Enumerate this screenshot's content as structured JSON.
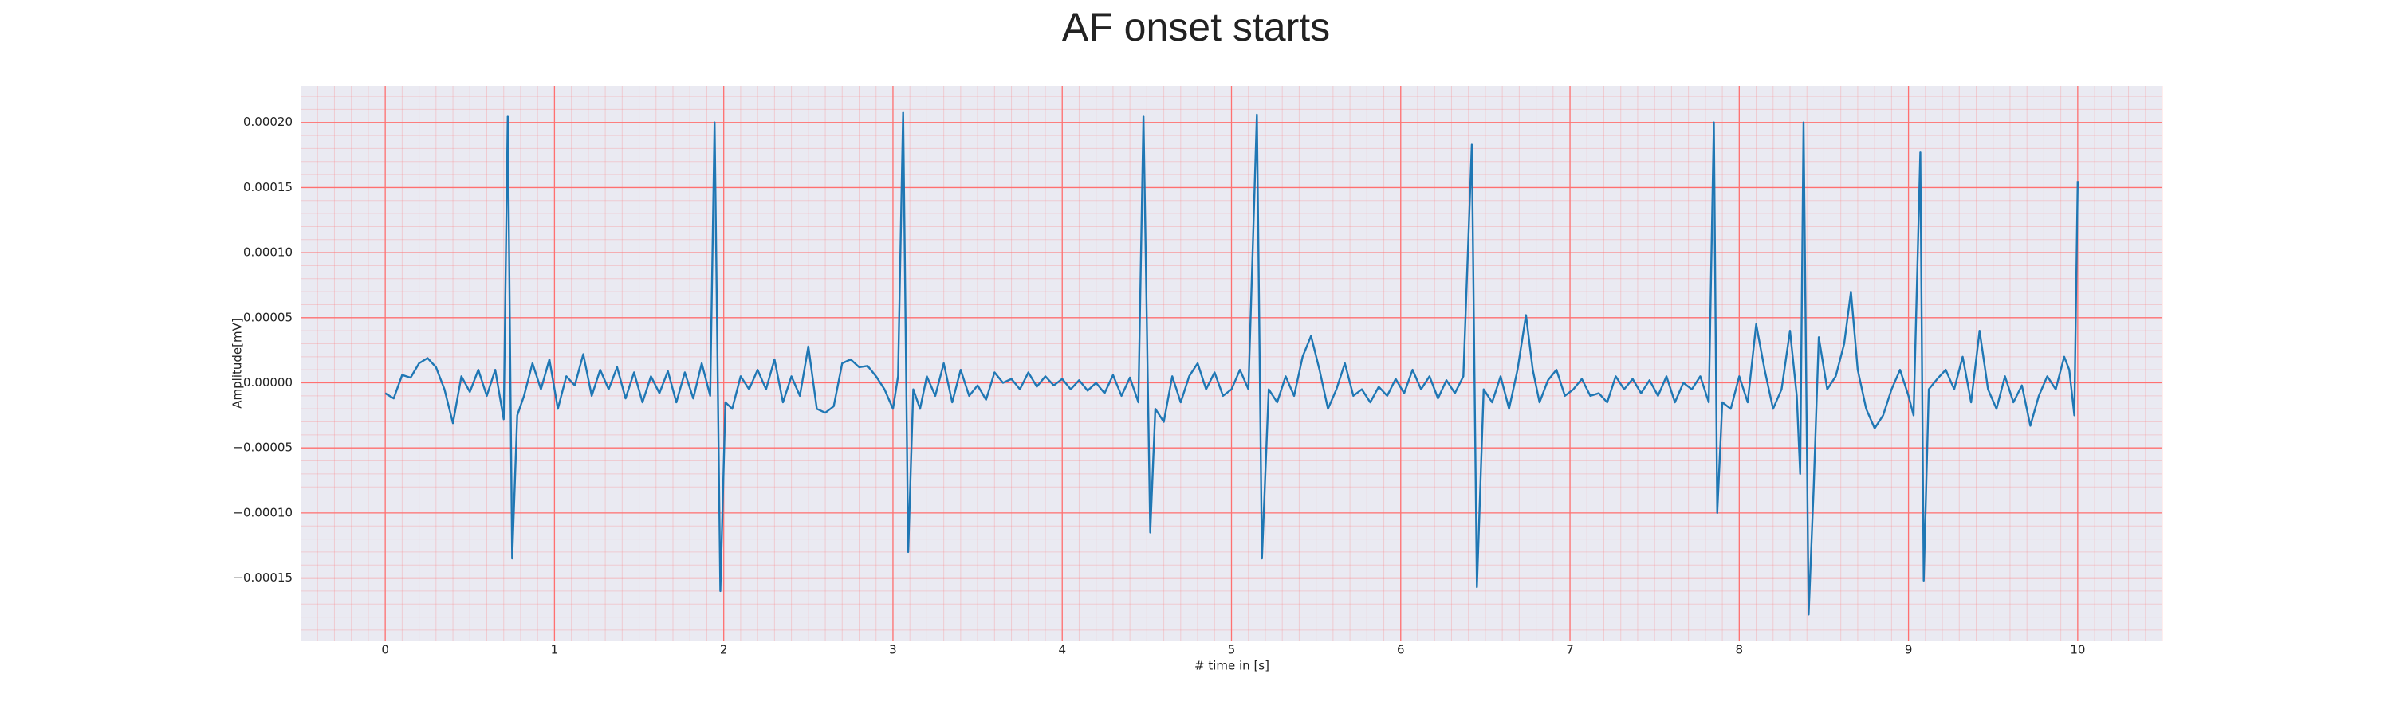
{
  "chart_data": {
    "type": "line",
    "title": "AF onset starts",
    "xlabel": "# time in [s]",
    "ylabel": "Amplitude[mV]",
    "xlim": [
      -0.5,
      10.5
    ],
    "ylim": [
      -0.000198,
      0.000228
    ],
    "xticks": [
      0,
      1,
      2,
      3,
      4,
      5,
      6,
      7,
      8,
      9,
      10
    ],
    "yticks": [
      {
        "value": -0.00015,
        "label": "−0.00015"
      },
      {
        "value": -0.0001,
        "label": "−0.00010"
      },
      {
        "value": -5e-05,
        "label": "−0.00005"
      },
      {
        "value": 0,
        "label": "0.00000"
      },
      {
        "value": 5e-05,
        "label": "0.00005"
      },
      {
        "value": 0.0001,
        "label": "0.00010"
      },
      {
        "value": 0.00015,
        "label": "0.00015"
      },
      {
        "value": 0.0002,
        "label": "0.00020"
      }
    ],
    "grid": true,
    "grid_color": "#ff7070",
    "background": "#eaeaf2",
    "series": [
      {
        "color": "#1f77b4",
        "x": [
          0,
          0.05,
          0.1,
          0.15,
          0.2,
          0.25,
          0.3,
          0.35,
          0.4,
          0.45,
          0.5,
          0.55,
          0.6,
          0.65,
          0.7,
          0.724,
          0.75,
          0.78,
          0.82,
          0.87,
          0.92,
          0.97,
          1.02,
          1.07,
          1.12,
          1.17,
          1.22,
          1.27,
          1.32,
          1.37,
          1.42,
          1.47,
          1.52,
          1.57,
          1.62,
          1.67,
          1.72,
          1.77,
          1.82,
          1.87,
          1.92,
          1.946,
          1.98,
          2.01,
          2.05,
          2.1,
          2.15,
          2.2,
          2.25,
          2.3,
          2.35,
          2.4,
          2.45,
          2.5,
          2.55,
          2.6,
          2.65,
          2.7,
          2.75,
          2.8,
          2.85,
          2.9,
          2.95,
          3.0,
          3.03,
          3.06,
          3.09,
          3.12,
          3.16,
          3.2,
          3.25,
          3.3,
          3.35,
          3.4,
          3.45,
          3.5,
          3.55,
          3.6,
          3.65,
          3.7,
          3.75,
          3.8,
          3.85,
          3.9,
          3.95,
          4.0,
          4.05,
          4.1,
          4.15,
          4.2,
          4.25,
          4.3,
          4.35,
          4.4,
          4.45,
          4.48,
          4.52,
          4.55,
          4.6,
          4.65,
          4.7,
          4.75,
          4.8,
          4.85,
          4.9,
          4.95,
          5.0,
          5.05,
          5.1,
          5.15,
          5.18,
          5.22,
          5.27,
          5.32,
          5.37,
          5.42,
          5.47,
          5.52,
          5.57,
          5.62,
          5.67,
          5.72,
          5.77,
          5.82,
          5.87,
          5.92,
          5.97,
          6.02,
          6.07,
          6.12,
          6.17,
          6.22,
          6.27,
          6.32,
          6.37,
          6.42,
          6.45,
          6.49,
          6.54,
          6.59,
          6.64,
          6.69,
          6.74,
          6.78,
          6.82,
          6.87,
          6.92,
          6.97,
          7.02,
          7.07,
          7.12,
          7.17,
          7.22,
          7.27,
          7.32,
          7.37,
          7.42,
          7.47,
          7.52,
          7.57,
          7.62,
          7.67,
          7.72,
          7.77,
          7.82,
          7.85,
          7.87,
          7.9,
          7.95,
          8.0,
          8.05,
          8.1,
          8.15,
          8.2,
          8.25,
          8.3,
          8.34,
          8.36,
          8.38,
          8.41,
          8.44,
          8.47,
          8.52,
          8.57,
          8.62,
          8.66,
          8.7,
          8.75,
          8.8,
          8.85,
          8.9,
          8.95,
          9.0,
          9.03,
          9.07,
          9.09,
          9.12,
          9.17,
          9.22,
          9.27,
          9.32,
          9.37,
          9.42,
          9.47,
          9.52,
          9.57,
          9.62,
          9.67,
          9.72,
          9.77,
          9.82,
          9.87,
          9.92,
          9.95,
          9.98,
          10.0
        ],
        "values": [
          -8e-06,
          -1.2e-05,
          6e-06,
          4e-06,
          1.5e-05,
          1.9e-05,
          1.2e-05,
          -5e-06,
          -3.1e-05,
          5e-06,
          -7e-06,
          1e-05,
          -1e-05,
          1e-05,
          -2.8e-05,
          0.000205,
          -0.000135,
          -2.5e-05,
          -1e-05,
          1.5e-05,
          -5e-06,
          1.8e-05,
          -2e-05,
          5e-06,
          -2e-06,
          2.2e-05,
          -1e-05,
          1e-05,
          -5e-06,
          1.2e-05,
          -1.2e-05,
          8e-06,
          -1.5e-05,
          5e-06,
          -8e-06,
          9e-06,
          -1.5e-05,
          8e-06,
          -1.2e-05,
          1.5e-05,
          -1e-05,
          0.0002,
          -0.00016,
          -1.5e-05,
          -2e-05,
          5e-06,
          -5e-06,
          1e-05,
          -5e-06,
          1.8e-05,
          -1.5e-05,
          5e-06,
          -1e-05,
          2.8e-05,
          -2e-05,
          -2.3e-05,
          -1.8e-05,
          1.5e-05,
          1.8e-05,
          1.2e-05,
          1.3e-05,
          5e-06,
          -5e-06,
          -2e-05,
          5e-06,
          0.000208,
          -0.00013,
          -5e-06,
          -2e-05,
          5e-06,
          -1e-05,
          1.5e-05,
          -1.5e-05,
          1e-05,
          -1e-05,
          -2e-06,
          -1.3e-05,
          8e-06,
          0,
          3e-06,
          -5e-06,
          8e-06,
          -3e-06,
          5e-06,
          -2e-06,
          3e-06,
          -5e-06,
          2e-06,
          -6e-06,
          0,
          -8e-06,
          6e-06,
          -1e-05,
          4e-06,
          -1.5e-05,
          0.000205,
          -0.000115,
          -2e-05,
          -3e-05,
          5e-06,
          -1.5e-05,
          5e-06,
          1.5e-05,
          -5e-06,
          8e-06,
          -1e-05,
          -5e-06,
          1e-05,
          -5e-06,
          0.000206,
          -0.000135,
          -5e-06,
          -1.5e-05,
          5e-06,
          -1e-05,
          2e-05,
          3.6e-05,
          1e-05,
          -2e-05,
          -5e-06,
          1.5e-05,
          -1e-05,
          -5e-06,
          -1.5e-05,
          -3e-06,
          -1e-05,
          3e-06,
          -8e-06,
          1e-05,
          -5e-06,
          5e-06,
          -1.2e-05,
          2e-06,
          -8e-06,
          5e-06,
          0.000183,
          -0.000157,
          -5e-06,
          -1.5e-05,
          5e-06,
          -2e-05,
          1e-05,
          5.2e-05,
          1e-05,
          -1.5e-05,
          2e-06,
          1e-05,
          -1e-05,
          -5e-06,
          3e-06,
          -1e-05,
          -8e-06,
          -1.5e-05,
          5e-06,
          -5e-06,
          3e-06,
          -8e-06,
          2e-06,
          -1e-05,
          5e-06,
          -1.5e-05,
          0,
          -5e-06,
          5e-06,
          -1.5e-05,
          0.0002,
          -0.0001,
          -1.5e-05,
          -2e-05,
          5e-06,
          -1.5e-05,
          4.5e-05,
          1e-05,
          -2e-05,
          -5e-06,
          4e-05,
          -1e-05,
          -7e-05,
          0.0002,
          -0.000178,
          -8e-05,
          3.5e-05,
          -5e-06,
          5e-06,
          3e-05,
          7e-05,
          1e-05,
          -2e-05,
          -3.5e-05,
          -2.5e-05,
          -5e-06,
          1e-05,
          -1e-05,
          -2.5e-05,
          0.000177,
          -0.000152,
          -5e-06,
          3e-06,
          1e-05,
          -5e-06,
          2e-05,
          -1.5e-05,
          4e-05,
          -5e-06,
          -2e-05,
          5e-06,
          -1.5e-05,
          -2e-06,
          -3.3e-05,
          -1e-05,
          5e-06,
          -5e-06,
          2e-05,
          1e-05,
          -2.5e-05,
          0.000155
        ]
      }
    ]
  }
}
